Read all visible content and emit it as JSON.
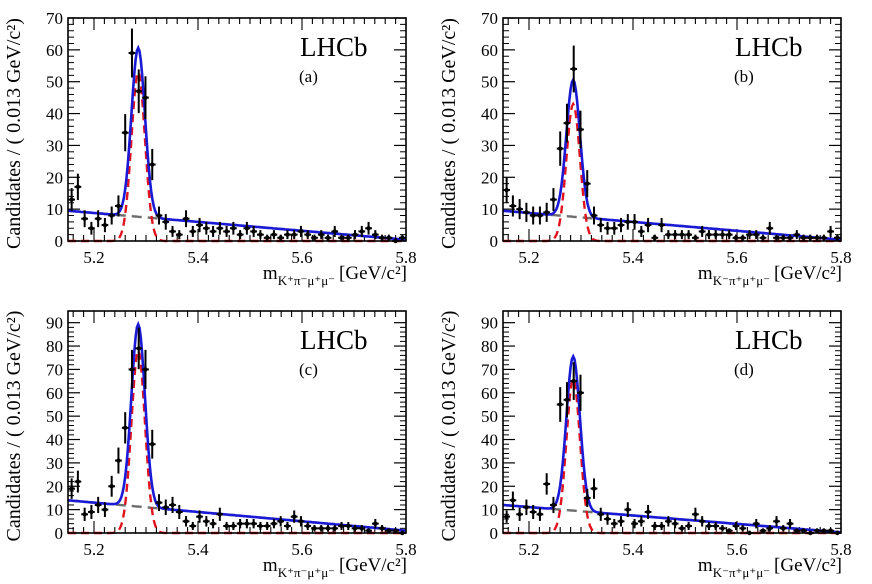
{
  "chart_data": [
    {
      "type": "scatter",
      "panel_label": "(a)",
      "watermark": "LHCb",
      "ylabel": "Candidates / ( 0.013 GeV/c²)",
      "xlabel_main": "m",
      "xlabel_sub": "K⁺π⁻μ⁺μ⁻",
      "xlabel_units": "[GeV/c²]",
      "xlim": [
        5.15,
        5.8
      ],
      "ylim": [
        0,
        70
      ],
      "xticks": [
        "5.2",
        "5.4",
        "5.6",
        "5.8"
      ],
      "xtick_values": [
        5.2,
        5.4,
        5.6,
        5.8
      ],
      "yticks": [
        "0",
        "10",
        "20",
        "30",
        "40",
        "50",
        "60",
        "70"
      ],
      "ytick_values": [
        0,
        10,
        20,
        30,
        40,
        50,
        60,
        70
      ],
      "fit": {
        "peak": 5.285,
        "sigma": 0.013,
        "signal_amp": 53,
        "bkg_at_start": 9.5,
        "bkg_slope": -14
      },
      "points": [
        [
          5.157,
          13
        ],
        [
          5.169,
          17
        ],
        [
          5.182,
          7
        ],
        [
          5.195,
          4
        ],
        [
          5.208,
          7
        ],
        [
          5.221,
          5
        ],
        [
          5.234,
          8
        ],
        [
          5.247,
          11
        ],
        [
          5.26,
          34
        ],
        [
          5.273,
          59
        ],
        [
          5.286,
          47
        ],
        [
          5.299,
          45
        ],
        [
          5.312,
          24
        ],
        [
          5.325,
          8
        ],
        [
          5.338,
          6
        ],
        [
          5.351,
          3
        ],
        [
          5.364,
          2
        ],
        [
          5.377,
          7
        ],
        [
          5.39,
          3
        ],
        [
          5.403,
          5
        ],
        [
          5.416,
          4
        ],
        [
          5.429,
          3
        ],
        [
          5.442,
          4
        ],
        [
          5.455,
          3
        ],
        [
          5.468,
          4
        ],
        [
          5.481,
          2
        ],
        [
          5.494,
          4
        ],
        [
          5.507,
          3
        ],
        [
          5.52,
          2
        ],
        [
          5.533,
          1
        ],
        [
          5.546,
          2
        ],
        [
          5.559,
          1
        ],
        [
          5.572,
          2
        ],
        [
          5.585,
          2
        ],
        [
          5.598,
          3
        ],
        [
          5.611,
          2
        ],
        [
          5.624,
          1
        ],
        [
          5.637,
          2
        ],
        [
          5.65,
          1
        ],
        [
          5.663,
          3
        ],
        [
          5.676,
          1
        ],
        [
          5.689,
          1
        ],
        [
          5.702,
          2
        ],
        [
          5.715,
          3
        ],
        [
          5.728,
          4
        ],
        [
          5.741,
          2
        ],
        [
          5.754,
          1
        ],
        [
          5.767,
          1
        ],
        [
          5.78,
          0
        ],
        [
          5.793,
          1
        ]
      ]
    },
    {
      "type": "scatter",
      "panel_label": "(b)",
      "watermark": "LHCb",
      "ylabel": "Candidates / ( 0.013 GeV/c²)",
      "xlabel_main": "m",
      "xlabel_sub": "K⁻π⁺μ⁺μ⁻",
      "xlabel_units": "[GeV/c²]",
      "xlim": [
        5.15,
        5.8
      ],
      "ylim": [
        0,
        70
      ],
      "xticks": [
        "5.2",
        "5.4",
        "5.6",
        "5.8"
      ],
      "xtick_values": [
        5.2,
        5.4,
        5.6,
        5.8
      ],
      "yticks": [
        "0",
        "10",
        "20",
        "30",
        "40",
        "50",
        "60",
        "70"
      ],
      "ytick_values": [
        0,
        10,
        20,
        30,
        40,
        50,
        60,
        70
      ],
      "fit": {
        "peak": 5.285,
        "sigma": 0.013,
        "signal_amp": 43,
        "bkg_at_start": 9.5,
        "bkg_slope": -14
      },
      "points": [
        [
          5.157,
          16
        ],
        [
          5.169,
          11
        ],
        [
          5.182,
          10
        ],
        [
          5.195,
          9
        ],
        [
          5.208,
          8
        ],
        [
          5.221,
          8
        ],
        [
          5.234,
          9
        ],
        [
          5.247,
          13
        ],
        [
          5.26,
          29
        ],
        [
          5.273,
          37
        ],
        [
          5.286,
          54
        ],
        [
          5.299,
          35
        ],
        [
          5.312,
          18
        ],
        [
          5.325,
          8
        ],
        [
          5.338,
          5
        ],
        [
          5.351,
          4
        ],
        [
          5.364,
          4
        ],
        [
          5.377,
          5
        ],
        [
          5.39,
          6
        ],
        [
          5.403,
          6
        ],
        [
          5.416,
          3
        ],
        [
          5.429,
          5
        ],
        [
          5.442,
          1
        ],
        [
          5.455,
          5
        ],
        [
          5.468,
          2
        ],
        [
          5.481,
          2
        ],
        [
          5.494,
          2
        ],
        [
          5.507,
          2
        ],
        [
          5.52,
          1
        ],
        [
          5.533,
          3
        ],
        [
          5.546,
          2
        ],
        [
          5.559,
          2
        ],
        [
          5.572,
          2
        ],
        [
          5.585,
          2
        ],
        [
          5.598,
          1
        ],
        [
          5.611,
          1
        ],
        [
          5.624,
          2
        ],
        [
          5.637,
          2
        ],
        [
          5.65,
          1
        ],
        [
          5.663,
          4
        ],
        [
          5.676,
          1
        ],
        [
          5.689,
          1
        ],
        [
          5.702,
          1
        ],
        [
          5.715,
          2
        ],
        [
          5.728,
          1
        ],
        [
          5.741,
          1
        ],
        [
          5.754,
          1
        ],
        [
          5.767,
          1
        ],
        [
          5.78,
          3
        ],
        [
          5.793,
          1
        ]
      ]
    },
    {
      "type": "scatter",
      "panel_label": "(c)",
      "watermark": "LHCb",
      "ylabel": "Candidates / ( 0.013 GeV/c²)",
      "xlabel_main": "m",
      "xlabel_sub": "K⁺π⁻μ⁺μ⁻",
      "xlabel_units": "[GeV/c²]",
      "xlim": [
        5.15,
        5.8
      ],
      "ylim": [
        0,
        95
      ],
      "xticks": [
        "5.2",
        "5.4",
        "5.6",
        "5.8"
      ],
      "xtick_values": [
        5.2,
        5.4,
        5.6,
        5.8
      ],
      "yticks": [
        "0",
        "10",
        "20",
        "30",
        "40",
        "50",
        "60",
        "70",
        "80",
        "90"
      ],
      "ytick_values": [
        0,
        10,
        20,
        30,
        40,
        50,
        60,
        70,
        80,
        90
      ],
      "fit": {
        "peak": 5.285,
        "sigma": 0.013,
        "signal_amp": 78,
        "bkg_at_start": 14,
        "bkg_slope": -20
      },
      "points": [
        [
          5.157,
          19
        ],
        [
          5.169,
          22
        ],
        [
          5.182,
          8
        ],
        [
          5.195,
          9
        ],
        [
          5.208,
          12
        ],
        [
          5.221,
          10
        ],
        [
          5.234,
          20
        ],
        [
          5.247,
          31
        ],
        [
          5.26,
          45
        ],
        [
          5.273,
          70
        ],
        [
          5.286,
          79
        ],
        [
          5.299,
          70
        ],
        [
          5.312,
          38
        ],
        [
          5.325,
          13
        ],
        [
          5.338,
          11
        ],
        [
          5.351,
          12
        ],
        [
          5.364,
          9
        ],
        [
          5.377,
          5
        ],
        [
          5.39,
          3
        ],
        [
          5.403,
          7
        ],
        [
          5.416,
          5
        ],
        [
          5.429,
          4
        ],
        [
          5.442,
          8
        ],
        [
          5.455,
          3
        ],
        [
          5.468,
          3
        ],
        [
          5.481,
          4
        ],
        [
          5.494,
          4
        ],
        [
          5.507,
          4
        ],
        [
          5.52,
          3
        ],
        [
          5.533,
          3
        ],
        [
          5.546,
          4
        ],
        [
          5.559,
          5
        ],
        [
          5.572,
          3
        ],
        [
          5.585,
          7
        ],
        [
          5.598,
          5
        ],
        [
          5.611,
          3
        ],
        [
          5.624,
          2
        ],
        [
          5.637,
          2
        ],
        [
          5.65,
          2
        ],
        [
          5.663,
          2
        ],
        [
          5.676,
          3
        ],
        [
          5.689,
          3
        ],
        [
          5.702,
          2
        ],
        [
          5.715,
          2
        ],
        [
          5.728,
          1
        ],
        [
          5.741,
          4
        ],
        [
          5.754,
          2
        ],
        [
          5.767,
          1
        ],
        [
          5.78,
          1
        ],
        [
          5.793,
          0
        ]
      ]
    },
    {
      "type": "scatter",
      "panel_label": "(d)",
      "watermark": "LHCb",
      "ylabel": "Candidates / ( 0.013 GeV/c²)",
      "xlabel_main": "m",
      "xlabel_sub": "K⁻π⁺μ⁺μ⁻",
      "xlabel_units": "[GeV/c²]",
      "xlim": [
        5.15,
        5.8
      ],
      "ylim": [
        0,
        95
      ],
      "xticks": [
        "5.2",
        "5.4",
        "5.6",
        "5.8"
      ],
      "xtick_values": [
        5.2,
        5.4,
        5.6,
        5.8
      ],
      "yticks": [
        "0",
        "10",
        "20",
        "30",
        "40",
        "50",
        "60",
        "70",
        "80",
        "90"
      ],
      "ytick_values": [
        0,
        10,
        20,
        30,
        40,
        50,
        60,
        70,
        80,
        90
      ],
      "fit": {
        "peak": 5.285,
        "sigma": 0.013,
        "signal_amp": 66,
        "bkg_at_start": 12,
        "bkg_slope": -18
      },
      "points": [
        [
          5.157,
          7
        ],
        [
          5.169,
          14
        ],
        [
          5.182,
          8
        ],
        [
          5.195,
          11
        ],
        [
          5.208,
          9
        ],
        [
          5.221,
          8
        ],
        [
          5.234,
          21
        ],
        [
          5.247,
          12
        ],
        [
          5.26,
          55
        ],
        [
          5.273,
          57
        ],
        [
          5.286,
          65
        ],
        [
          5.299,
          60
        ],
        [
          5.312,
          15
        ],
        [
          5.325,
          19
        ],
        [
          5.338,
          8
        ],
        [
          5.351,
          6
        ],
        [
          5.364,
          4
        ],
        [
          5.377,
          5
        ],
        [
          5.39,
          10
        ],
        [
          5.403,
          4
        ],
        [
          5.416,
          5
        ],
        [
          5.429,
          9
        ],
        [
          5.442,
          3
        ],
        [
          5.455,
          3
        ],
        [
          5.468,
          5
        ],
        [
          5.481,
          4
        ],
        [
          5.494,
          2
        ],
        [
          5.507,
          3
        ],
        [
          5.52,
          8
        ],
        [
          5.533,
          5
        ],
        [
          5.546,
          3
        ],
        [
          5.559,
          3
        ],
        [
          5.572,
          2
        ],
        [
          5.585,
          1
        ],
        [
          5.598,
          3
        ],
        [
          5.611,
          2
        ],
        [
          5.624,
          0
        ],
        [
          5.637,
          4
        ],
        [
          5.65,
          1
        ],
        [
          5.663,
          2
        ],
        [
          5.676,
          5
        ],
        [
          5.689,
          2
        ],
        [
          5.702,
          4
        ],
        [
          5.715,
          1
        ],
        [
          5.728,
          1
        ],
        [
          5.741,
          0
        ],
        [
          5.754,
          1
        ],
        [
          5.767,
          1
        ],
        [
          5.78,
          1
        ],
        [
          5.793,
          0
        ]
      ]
    }
  ]
}
